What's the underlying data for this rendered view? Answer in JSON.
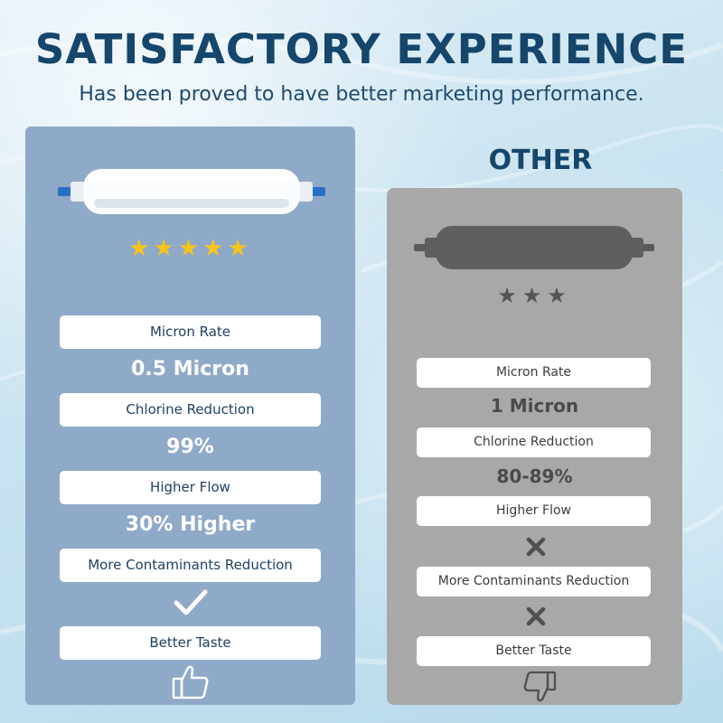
{
  "header": {
    "title": "SATISFACTORY EXPERIENCE",
    "subtitle": "Has been proved to have better marketing performance."
  },
  "ours": {
    "stars_rating": 5,
    "stars_text": "★★★★★",
    "items": [
      {
        "label": "Micron Rate",
        "value": "0.5 Micron"
      },
      {
        "label": "Chlorine Reduction",
        "value": "99%"
      },
      {
        "label": "Higher Flow",
        "value": "30% Higher"
      },
      {
        "label": "More Contaminants Reduction",
        "value_icon": "check-icon"
      },
      {
        "label": "Better Taste",
        "value_icon": "thumbs-up-icon"
      }
    ],
    "colors": {
      "card": "#8fa9c8",
      "stars": "#f7c51a"
    }
  },
  "other": {
    "heading": "OTHER",
    "stars_rating": 3,
    "stars_text": "★★★",
    "items": [
      {
        "label": "Micron Rate",
        "value": "1 Micron"
      },
      {
        "label": "Chlorine Reduction",
        "value": "80-89%"
      },
      {
        "label": "Higher Flow",
        "value_icon": "x-icon"
      },
      {
        "label": "More Contaminants Reduction",
        "value_icon": "x-icon"
      },
      {
        "label": "Better Taste",
        "value_icon": "thumbs-down-icon"
      }
    ],
    "colors": {
      "card": "#a8a8a8",
      "stars": "#555555"
    }
  },
  "colors": {
    "title": "#15466b"
  }
}
